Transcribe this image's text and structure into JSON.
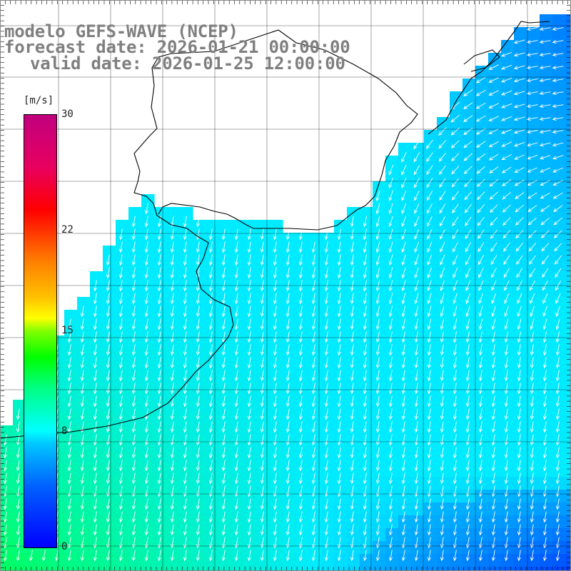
{
  "title": {
    "model": "modelo GEFS-WAVE (NCEP)",
    "forecast": "forecast date: 2026-01-21 00:00:00",
    "valid": "valid date: 2026-01-25 12:00:00"
  },
  "legend": {
    "unit": "[m/s]",
    "ticks": [
      {
        "label": "30",
        "value": 30
      },
      {
        "label": "22",
        "value": 22
      },
      {
        "label": "15",
        "value": 15
      },
      {
        "label": "8",
        "value": 8
      },
      {
        "label": "0",
        "value": 0
      }
    ],
    "vmin": 0,
    "vmax": 30
  },
  "colors": {
    "land": "#ffffff",
    "coast": "#000000",
    "grid": "#000000",
    "arrow": "#ffffff",
    "ramp": [
      "#0000ff",
      "#0060ff",
      "#00c8ff",
      "#00ffff",
      "#00ff80",
      "#00ff00",
      "#ffff00",
      "#ff8000",
      "#ff0000",
      "#c0007e"
    ]
  },
  "wind_field": {
    "description_units": "m/s",
    "typical_speed_range": [
      6,
      12
    ],
    "dominant_direction": "from north / northeast"
  }
}
